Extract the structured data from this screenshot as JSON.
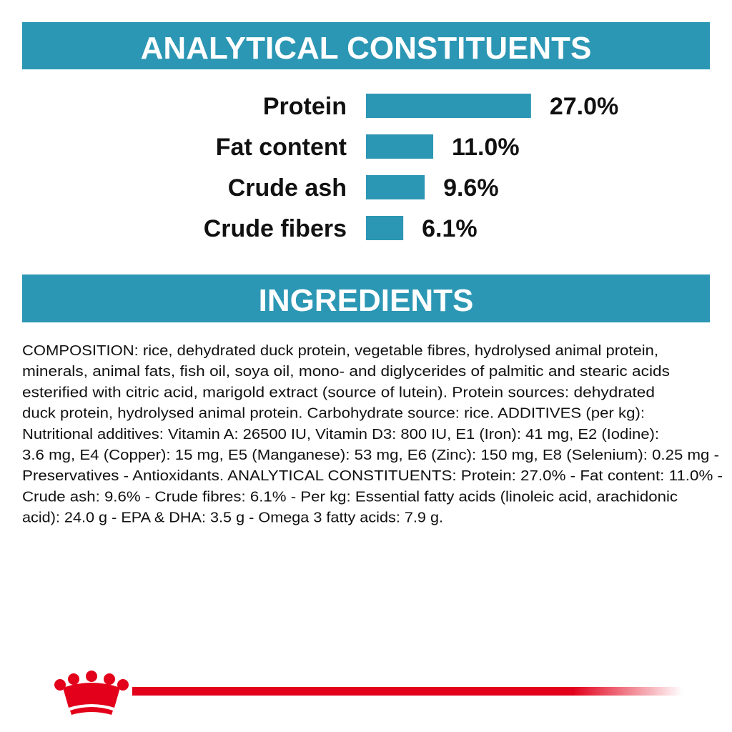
{
  "header": {
    "title": "ANALYTICAL CONSTITUENTS"
  },
  "chart_data": {
    "type": "bar",
    "categories": [
      "Protein",
      "Fat content",
      "Crude ash",
      "Crude fibers"
    ],
    "values": [
      27.0,
      11.0,
      9.6,
      6.1
    ],
    "value_labels": [
      "27.0%",
      "11.0%",
      "9.6%",
      "6.1%"
    ],
    "color": "#2c97b4"
  },
  "ingredients": {
    "title": "INGREDIENTS",
    "lines": [
      "COMPOSITION: rice, dehydrated duck protein, vegetable fibres, hydrolysed animal protein,",
      "minerals, animal fats, fish oil, soya oil, mono- and diglycerides of palmitic and stearic acids",
      "esterified with citric acid, marigold extract (source of lutein). Protein sources: dehydrated",
      "duck protein, hydrolysed animal protein. Carbohydrate source: rice. ADDITIVES (per kg):",
      "Nutritional additives: Vitamin A: 26500 IU, Vitamin D3: 800 IU, E1 (Iron): 41 mg, E2 (Iodine):",
      "3.6 mg, E4 (Copper): 15 mg, E5 (Manganese): 53 mg, E6 (Zinc): 150 mg, E8 (Selenium): 0.25 mg -",
      "Preservatives - Antioxidants. ANALYTICAL CONSTITUENTS: Protein: 27.0% - Fat content: 11.0% -",
      "Crude ash: 9.6% - Crude fibres: 6.1% - Per kg: Essential fatty acids (linoleic acid, arachidonic",
      "acid): 24.0 g - EPA & DHA: 3.5 g - Omega 3 fatty acids: 7.9 g."
    ]
  }
}
